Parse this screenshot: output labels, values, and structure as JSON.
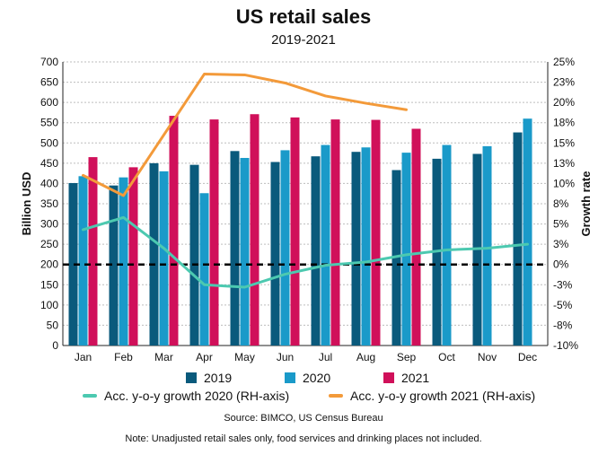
{
  "title": "US retail sales",
  "subtitle": "2019-2021",
  "source": "Source: BIMCO, US Census Bureau",
  "note": "Note: Unadjusted retail sales only, food services and drinking places not included.",
  "colors": {
    "s2019": "#0a5a7c",
    "s2020": "#1a9ac9",
    "s2021": "#d0105a",
    "g2020": "#4cc9b0",
    "g2021": "#f39a3a"
  },
  "chart_data": {
    "type": "bar",
    "categories": [
      "Jan",
      "Feb",
      "Mar",
      "Apr",
      "May",
      "Jun",
      "Jul",
      "Aug",
      "Sep",
      "Oct",
      "Nov",
      "Dec"
    ],
    "ylabel": "Billion USD",
    "y2label": "Growth rate",
    "ylim": [
      0,
      700
    ],
    "y2lim": [
      -10,
      25
    ],
    "yticks": [
      "0",
      "50",
      "100",
      "150",
      "200",
      "250",
      "300",
      "350",
      "400",
      "450",
      "500",
      "550",
      "600",
      "650",
      "700"
    ],
    "y2ticks": [
      "-10%",
      "-8%",
      "-5%",
      "-3%",
      "0%",
      "3%",
      "5%",
      "8%",
      "10%",
      "13%",
      "15%",
      "18%",
      "20%",
      "23%",
      "25%"
    ],
    "series": [
      {
        "name": "2019",
        "values": [
          401,
          395,
          450,
          446,
          480,
          453,
          467,
          478,
          433,
          461,
          473,
          526
        ]
      },
      {
        "name": "2020",
        "values": [
          418,
          415,
          430,
          376,
          463,
          482,
          495,
          489,
          476,
          495,
          492,
          560
        ]
      },
      {
        "name": "2021",
        "values": [
          465,
          440,
          567,
          558,
          571,
          563,
          558,
          557,
          535,
          null,
          null,
          null
        ]
      }
    ],
    "lines": [
      {
        "name": "Acc. y-o-y growth 2020 (RH-axis)",
        "axis": "right",
        "values": [
          4.3,
          5.8,
          2.0,
          -2.5,
          -2.8,
          -1.2,
          -0.1,
          0.3,
          1.2,
          1.8,
          2.0,
          2.5
        ]
      },
      {
        "name": "Acc. y-o-y growth 2021 (RH-axis)",
        "axis": "right",
        "values": [
          11.0,
          8.5,
          null,
          23.5,
          23.4,
          22.4,
          20.8,
          19.9,
          19.1,
          null,
          null,
          null
        ]
      }
    ],
    "reference_line": {
      "axis": "left",
      "value": 200,
      "style": "dashed"
    },
    "grid": true
  }
}
